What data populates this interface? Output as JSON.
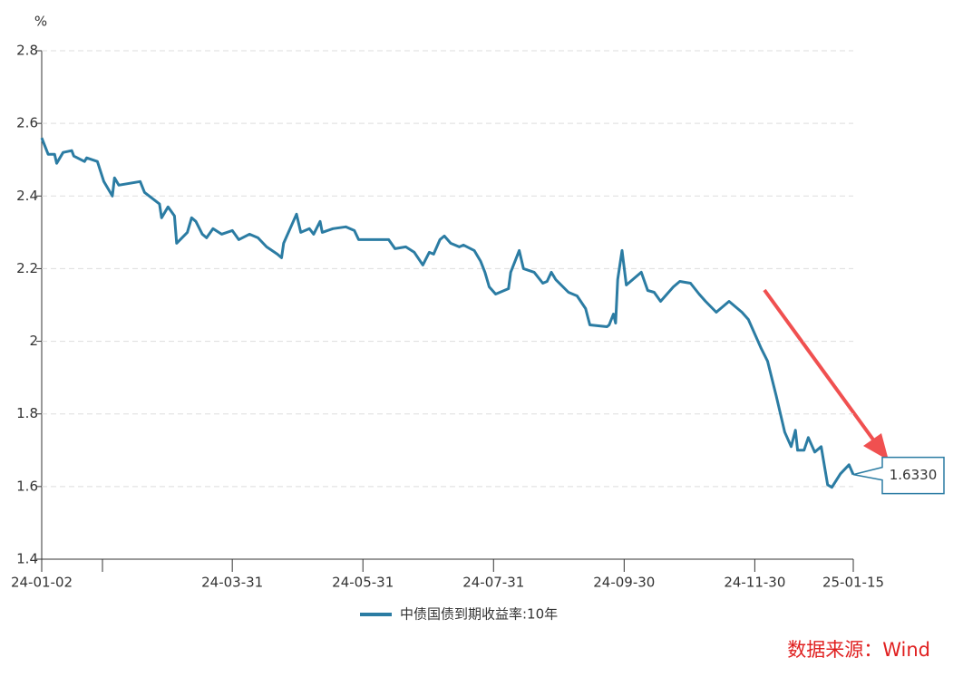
{
  "chart_data": {
    "type": "line",
    "y_unit": "%",
    "source": "数据来源：Wind",
    "x": [
      "24-01-02",
      "24-01-05",
      "24-01-08",
      "24-01-09",
      "24-01-12",
      "24-01-16",
      "24-01-17",
      "24-01-22",
      "24-01-23",
      "24-01-28",
      "24-01-31",
      "24-02-04",
      "24-02-05",
      "24-02-07",
      "24-02-17",
      "24-02-19",
      "24-02-26",
      "24-02-27",
      "24-03-01",
      "24-03-04",
      "24-03-05",
      "24-03-10",
      "24-03-12",
      "24-03-14",
      "24-03-17",
      "24-03-19",
      "24-03-22",
      "24-03-26",
      "24-03-31",
      "24-04-03",
      "24-04-08",
      "24-04-12",
      "24-04-16",
      "24-04-21",
      "24-04-23",
      "24-04-24",
      "24-04-27",
      "24-04-30",
      "24-05-02",
      "24-05-06",
      "24-05-08",
      "24-05-11",
      "24-05-12",
      "24-05-17",
      "24-05-23",
      "24-05-27",
      "24-05-29",
      "24-05-31",
      "24-06-12",
      "24-06-15",
      "24-06-20",
      "24-06-24",
      "24-06-28",
      "24-07-01",
      "24-07-03",
      "24-07-06",
      "24-07-08",
      "24-07-11",
      "24-07-15",
      "24-07-17",
      "24-07-22",
      "24-07-25",
      "24-07-27",
      "24-07-29",
      "24-08-01",
      "24-08-05",
      "24-08-07",
      "24-08-08",
      "24-08-12",
      "24-08-14",
      "24-08-19",
      "24-08-23",
      "24-08-25",
      "24-08-27",
      "24-08-29",
      "24-09-04",
      "24-09-08",
      "24-09-12",
      "24-09-14",
      "24-09-22",
      "24-09-23",
      "24-09-25",
      "24-09-26",
      "24-09-27",
      "24-09-29",
      "24-10-01",
      "24-10-08",
      "24-10-11",
      "24-10-14",
      "24-10-17",
      "24-10-23",
      "24-10-26",
      "24-10-31",
      "24-11-04",
      "24-11-07",
      "24-11-12",
      "24-11-18",
      "24-11-24",
      "24-11-27",
      "24-12-03",
      "24-12-06",
      "24-12-10",
      "24-12-14",
      "24-12-17",
      "24-12-19",
      "24-12-20",
      "24-12-23",
      "24-12-25",
      "24-12-28",
      "24-12-31",
      "25-01-03",
      "25-01-05",
      "25-01-09",
      "25-01-13",
      "25-01-15"
    ],
    "series": [
      {
        "name": "中债国债到期收益率:10年",
        "color": "#2b7ca3",
        "values": [
          2.56,
          2.515,
          2.515,
          2.49,
          2.52,
          2.525,
          2.51,
          2.495,
          2.505,
          2.495,
          2.44,
          2.4,
          2.45,
          2.43,
          2.44,
          2.41,
          2.378,
          2.34,
          2.37,
          2.345,
          2.27,
          2.3,
          2.34,
          2.33,
          2.295,
          2.285,
          2.31,
          2.295,
          2.305,
          2.28,
          2.295,
          2.285,
          2.26,
          2.24,
          2.23,
          2.27,
          2.31,
          2.35,
          2.3,
          2.31,
          2.295,
          2.33,
          2.3,
          2.31,
          2.315,
          2.305,
          2.28,
          2.28,
          2.28,
          2.255,
          2.26,
          2.245,
          2.21,
          2.245,
          2.24,
          2.28,
          2.29,
          2.27,
          2.26,
          2.265,
          2.25,
          2.22,
          2.19,
          2.15,
          2.13,
          2.14,
          2.145,
          2.19,
          2.25,
          2.2,
          2.19,
          2.16,
          2.165,
          2.19,
          2.17,
          2.135,
          2.125,
          2.09,
          2.045,
          2.04,
          2.045,
          2.075,
          2.05,
          2.17,
          2.25,
          2.155,
          2.19,
          2.14,
          2.135,
          2.11,
          2.15,
          2.165,
          2.16,
          2.13,
          2.11,
          2.08,
          2.11,
          2.08,
          2.06,
          1.98,
          1.945,
          1.85,
          1.75,
          1.71,
          1.755,
          1.7,
          1.7,
          1.735,
          1.695,
          1.71,
          1.605,
          1.598,
          1.635,
          1.66,
          1.633
        ]
      }
    ],
    "annotation": {
      "x": "25-01-15",
      "y": 1.633,
      "label": "1.6330"
    },
    "xlim": [
      "24-01-02",
      "25-01-15"
    ],
    "xticks": [
      "24-01-02",
      "24-03-31",
      "24-05-31",
      "24-07-31",
      "24-09-30",
      "24-11-30",
      "25-01-15"
    ],
    "ylim": [
      1.4,
      2.8
    ],
    "yticks": [
      2.8,
      2.6,
      2.4,
      2.2,
      2,
      1.8,
      1.6,
      1.4
    ],
    "grid": true
  }
}
